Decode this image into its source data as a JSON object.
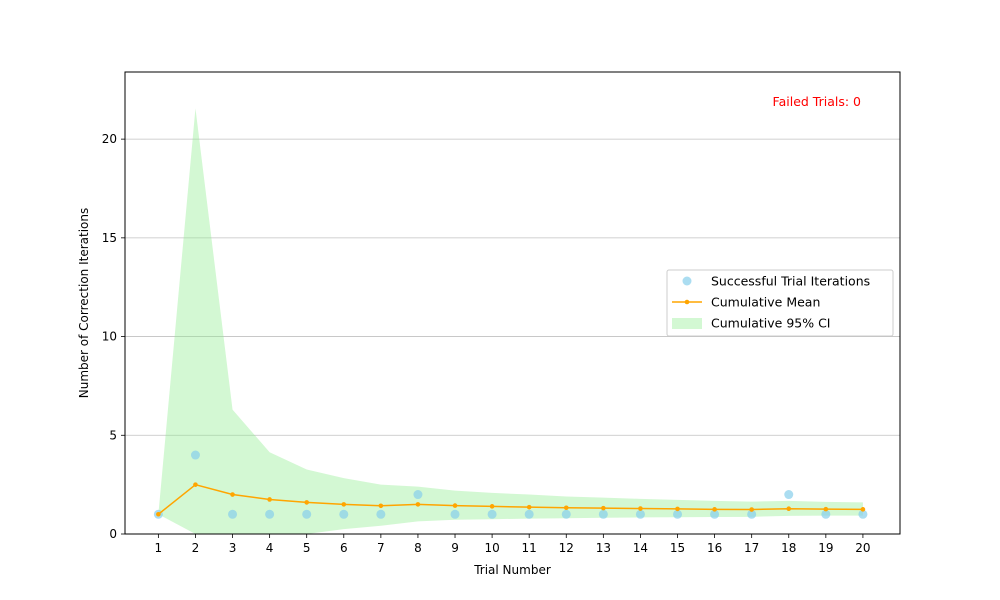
{
  "chart_data": {
    "type": "line",
    "x": [
      1,
      2,
      3,
      4,
      5,
      6,
      7,
      8,
      9,
      10,
      11,
      12,
      13,
      14,
      15,
      16,
      17,
      18,
      19,
      20
    ],
    "series": [
      {
        "name": "Successful Trial Iterations",
        "kind": "scatter",
        "color": "#87ceeb",
        "values": [
          1,
          4,
          1,
          1,
          1,
          1,
          1,
          2,
          1,
          1,
          1,
          1,
          1,
          1,
          1,
          1,
          1,
          2,
          1,
          1
        ]
      },
      {
        "name": "Cumulative Mean",
        "kind": "line",
        "color": "#ffa500",
        "values": [
          1.0,
          2.5,
          2.0,
          1.75,
          1.6,
          1.5,
          1.43,
          1.5,
          1.44,
          1.4,
          1.36,
          1.33,
          1.31,
          1.29,
          1.27,
          1.25,
          1.24,
          1.28,
          1.26,
          1.25
        ]
      },
      {
        "name": "Cumulative 95% CI",
        "kind": "band",
        "color": "#90ee90",
        "lower": [
          1.0,
          0.0,
          0.0,
          0.0,
          0.0,
          0.25,
          0.42,
          0.64,
          0.72,
          0.75,
          0.78,
          0.8,
          0.82,
          0.84,
          0.85,
          0.86,
          0.87,
          0.92,
          0.93,
          0.93
        ],
        "upper": [
          1.0,
          21.56,
          6.3,
          4.14,
          3.27,
          2.83,
          2.5,
          2.4,
          2.2,
          2.08,
          2.0,
          1.9,
          1.84,
          1.78,
          1.73,
          1.68,
          1.64,
          1.68,
          1.63,
          1.6
        ]
      }
    ],
    "title": "",
    "xlabel": "Trial Number",
    "ylabel": "Number of Correction Iterations",
    "xlim": [
      0.1,
      21.0
    ],
    "ylim": [
      0,
      23.4
    ],
    "yticks": [
      0,
      5,
      10,
      15,
      20
    ],
    "xticks": [
      1,
      2,
      3,
      4,
      5,
      6,
      7,
      8,
      9,
      10,
      11,
      12,
      13,
      14,
      15,
      16,
      17,
      18,
      19,
      20
    ],
    "grid": "y",
    "legend_position": "center-right",
    "annotation": {
      "text": "Failed Trials: 0",
      "color": "#ff0000",
      "position": "top-right"
    }
  }
}
